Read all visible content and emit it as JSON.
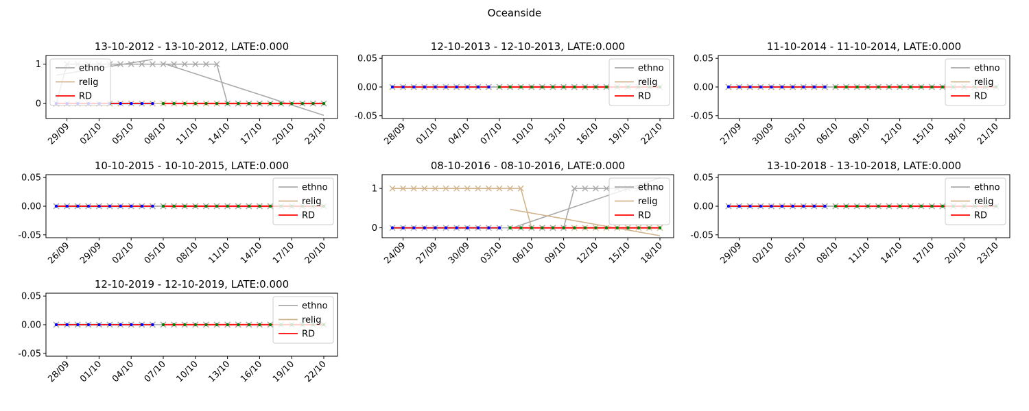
{
  "suptitle": "Oceanside",
  "legend_labels": [
    "ethno",
    "relig",
    "RD"
  ],
  "colors": {
    "ethno": "#a9a9a9",
    "relig": "#d2b48c",
    "RD": "#ff0000",
    "pre_marker": "#0000ff",
    "post_marker": "#008000",
    "pre_fit": "#add8e6",
    "post_fit": "#ffb6c1"
  },
  "chart_data": [
    {
      "type": "line",
      "title": "13-10-2012 - 13-10-2012, LATE:0.000",
      "legend_position": "upper-left",
      "ylim": [
        -0.38,
        1.22
      ],
      "yticks": [
        0,
        1
      ],
      "ytick_labels": [
        "0",
        "1"
      ],
      "xtick_labels": [
        "29/09",
        "02/10",
        "05/10",
        "08/10",
        "11/10",
        "14/10",
        "17/10",
        "20/10",
        "23/10"
      ],
      "cutoff_index": 10,
      "series": [
        {
          "name": "ethno",
          "values": [
            0,
            1,
            1,
            1,
            1,
            1,
            1,
            1,
            1,
            1,
            1,
            1,
            1,
            1,
            1,
            1,
            0,
            0,
            0,
            0,
            0,
            0,
            0,
            0,
            0,
            0
          ]
        },
        {
          "name": "relig",
          "values": [
            0,
            0,
            0,
            0,
            0,
            0,
            0,
            0,
            0,
            0,
            0,
            0,
            0,
            0,
            0,
            0,
            0,
            0,
            0,
            0,
            0,
            0,
            0,
            0,
            0,
            0
          ]
        },
        {
          "name": "RD",
          "values": [
            0,
            0,
            0,
            0,
            0,
            0,
            0,
            0,
            0,
            0,
            0,
            0,
            0,
            0,
            0,
            0,
            0,
            0,
            0,
            0,
            0,
            0,
            0,
            0,
            0,
            0
          ]
        }
      ],
      "ethno_fit": {
        "pre": [
          0.72,
          1.12
        ],
        "post": [
          1.02,
          -0.3
        ]
      },
      "relig_fit": {
        "pre": [
          0,
          0
        ],
        "post": [
          0,
          0
        ]
      }
    },
    {
      "type": "line",
      "title": "12-10-2013 - 12-10-2013, LATE:0.000",
      "legend_position": "upper-right",
      "ylim": [
        -0.055,
        0.055
      ],
      "yticks": [
        -0.05,
        0,
        0.05
      ],
      "ytick_labels": [
        "-0.05",
        "0.00",
        "0.05"
      ],
      "xtick_labels": [
        "28/09",
        "01/10",
        "04/10",
        "07/10",
        "10/10",
        "13/10",
        "16/10",
        "19/10",
        "22/10"
      ],
      "cutoff_index": 10,
      "series": [
        {
          "name": "ethno",
          "values": [
            0,
            0,
            0,
            0,
            0,
            0,
            0,
            0,
            0,
            0,
            0,
            0,
            0,
            0,
            0,
            0,
            0,
            0,
            0,
            0,
            0,
            0,
            0,
            0,
            0,
            0
          ]
        },
        {
          "name": "relig",
          "values": [
            0,
            0,
            0,
            0,
            0,
            0,
            0,
            0,
            0,
            0,
            0,
            0,
            0,
            0,
            0,
            0,
            0,
            0,
            0,
            0,
            0,
            0,
            0,
            0,
            0,
            0
          ]
        },
        {
          "name": "RD",
          "values": [
            0,
            0,
            0,
            0,
            0,
            0,
            0,
            0,
            0,
            0,
            0,
            0,
            0,
            0,
            0,
            0,
            0,
            0,
            0,
            0,
            0,
            0,
            0,
            0,
            0,
            0
          ]
        }
      ],
      "ethno_fit": {
        "pre": [
          0,
          0
        ],
        "post": [
          0,
          0
        ]
      },
      "relig_fit": {
        "pre": [
          0,
          0
        ],
        "post": [
          0,
          0
        ]
      }
    },
    {
      "type": "line",
      "title": "11-10-2014 - 11-10-2014, LATE:0.000",
      "legend_position": "upper-right",
      "ylim": [
        -0.055,
        0.055
      ],
      "yticks": [
        -0.05,
        0,
        0.05
      ],
      "ytick_labels": [
        "-0.05",
        "0.00",
        "0.05"
      ],
      "xtick_labels": [
        "27/09",
        "30/09",
        "03/10",
        "06/10",
        "09/10",
        "12/10",
        "15/10",
        "18/10",
        "21/10"
      ],
      "cutoff_index": 10,
      "series": [
        {
          "name": "ethno",
          "values": [
            0,
            0,
            0,
            0,
            0,
            0,
            0,
            0,
            0,
            0,
            0,
            0,
            0,
            0,
            0,
            0,
            0,
            0,
            0,
            0,
            0,
            0,
            0,
            0,
            0,
            0
          ]
        },
        {
          "name": "relig",
          "values": [
            0,
            0,
            0,
            0,
            0,
            0,
            0,
            0,
            0,
            0,
            0,
            0,
            0,
            0,
            0,
            0,
            0,
            0,
            0,
            0,
            0,
            0,
            0,
            0,
            0,
            0
          ]
        },
        {
          "name": "RD",
          "values": [
            0,
            0,
            0,
            0,
            0,
            0,
            0,
            0,
            0,
            0,
            0,
            0,
            0,
            0,
            0,
            0,
            0,
            0,
            0,
            0,
            0,
            0,
            0,
            0,
            0,
            0
          ]
        }
      ],
      "ethno_fit": {
        "pre": [
          0,
          0
        ],
        "post": [
          0,
          0
        ]
      },
      "relig_fit": {
        "pre": [
          0,
          0
        ],
        "post": [
          0,
          0
        ]
      }
    },
    {
      "type": "line",
      "title": "10-10-2015 - 10-10-2015, LATE:0.000",
      "legend_position": "upper-right",
      "ylim": [
        -0.055,
        0.055
      ],
      "yticks": [
        -0.05,
        0,
        0.05
      ],
      "ytick_labels": [
        "-0.05",
        "0.00",
        "0.05"
      ],
      "xtick_labels": [
        "26/09",
        "29/09",
        "02/10",
        "05/10",
        "08/10",
        "11/10",
        "14/10",
        "17/10",
        "20/10"
      ],
      "cutoff_index": 10,
      "series": [
        {
          "name": "ethno",
          "values": [
            0,
            0,
            0,
            0,
            0,
            0,
            0,
            0,
            0,
            0,
            0,
            0,
            0,
            0,
            0,
            0,
            0,
            0,
            0,
            0,
            0,
            0,
            0,
            0,
            0,
            0
          ]
        },
        {
          "name": "relig",
          "values": [
            0,
            0,
            0,
            0,
            0,
            0,
            0,
            0,
            0,
            0,
            0,
            0,
            0,
            0,
            0,
            0,
            0,
            0,
            0,
            0,
            0,
            0,
            0,
            0,
            0,
            0
          ]
        },
        {
          "name": "RD",
          "values": [
            0,
            0,
            0,
            0,
            0,
            0,
            0,
            0,
            0,
            0,
            0,
            0,
            0,
            0,
            0,
            0,
            0,
            0,
            0,
            0,
            0,
            0,
            0,
            0,
            0,
            0
          ]
        }
      ],
      "ethno_fit": {
        "pre": [
          0,
          0
        ],
        "post": [
          0,
          0
        ]
      },
      "relig_fit": {
        "pre": [
          0,
          0
        ],
        "post": [
          0,
          0
        ]
      }
    },
    {
      "type": "line",
      "title": "08-10-2016 - 08-10-2016, LATE:0.000",
      "legend_position": "upper-right",
      "ylim": [
        -0.25,
        1.35
      ],
      "yticks": [
        0,
        1
      ],
      "ytick_labels": [
        "0",
        "1"
      ],
      "xtick_labels": [
        "24/09",
        "27/09",
        "30/09",
        "03/10",
        "06/10",
        "09/10",
        "12/10",
        "15/10",
        "18/10"
      ],
      "cutoff_index": 11,
      "series": [
        {
          "name": "ethno",
          "values": [
            0,
            0,
            0,
            0,
            0,
            0,
            0,
            0,
            0,
            0,
            0,
            0,
            0,
            0,
            0,
            0,
            0,
            1,
            1,
            1,
            1,
            1,
            1,
            1,
            1,
            1
          ]
        },
        {
          "name": "relig",
          "values": [
            1,
            1,
            1,
            1,
            1,
            1,
            1,
            1,
            1,
            1,
            1,
            1,
            1,
            0,
            0,
            0,
            0,
            0,
            0,
            0,
            0,
            0,
            0,
            0,
            0,
            0
          ]
        },
        {
          "name": "RD",
          "values": [
            0,
            0,
            0,
            0,
            0,
            0,
            0,
            0,
            0,
            0,
            0,
            0,
            0,
            0,
            0,
            0,
            0,
            0,
            0,
            0,
            0,
            0,
            0,
            0,
            0,
            0
          ]
        }
      ],
      "ethno_fit": {
        "pre": [
          0,
          0
        ],
        "post": [
          -0.02,
          1.27
        ]
      },
      "relig_fit": {
        "pre": [
          1,
          1
        ],
        "post": [
          0.47,
          -0.2
        ]
      }
    },
    {
      "type": "line",
      "title": "13-10-2018 - 13-10-2018, LATE:0.000",
      "legend_position": "upper-right",
      "ylim": [
        -0.055,
        0.055
      ],
      "yticks": [
        -0.05,
        0,
        0.05
      ],
      "ytick_labels": [
        "-0.05",
        "0.00",
        "0.05"
      ],
      "xtick_labels": [
        "29/09",
        "02/10",
        "05/10",
        "08/10",
        "11/10",
        "14/10",
        "17/10",
        "20/10",
        "23/10"
      ],
      "cutoff_index": 10,
      "series": [
        {
          "name": "ethno",
          "values": [
            0,
            0,
            0,
            0,
            0,
            0,
            0,
            0,
            0,
            0,
            0,
            0,
            0,
            0,
            0,
            0,
            0,
            0,
            0,
            0,
            0,
            0,
            0,
            0,
            0,
            0
          ]
        },
        {
          "name": "relig",
          "values": [
            0,
            0,
            0,
            0,
            0,
            0,
            0,
            0,
            0,
            0,
            0,
            0,
            0,
            0,
            0,
            0,
            0,
            0,
            0,
            0,
            0,
            0,
            0,
            0,
            0,
            0
          ]
        },
        {
          "name": "RD",
          "values": [
            0,
            0,
            0,
            0,
            0,
            0,
            0,
            0,
            0,
            0,
            0,
            0,
            0,
            0,
            0,
            0,
            0,
            0,
            0,
            0,
            0,
            0,
            0,
            0,
            0,
            0
          ]
        }
      ],
      "ethno_fit": {
        "pre": [
          0,
          0
        ],
        "post": [
          0,
          0
        ]
      },
      "relig_fit": {
        "pre": [
          0,
          0
        ],
        "post": [
          0,
          0
        ]
      }
    },
    {
      "type": "line",
      "title": "12-10-2019 - 12-10-2019, LATE:0.000",
      "legend_position": "upper-right",
      "ylim": [
        -0.055,
        0.055
      ],
      "yticks": [
        -0.05,
        0,
        0.05
      ],
      "ytick_labels": [
        "-0.05",
        "0.00",
        "0.05"
      ],
      "xtick_labels": [
        "28/09",
        "01/10",
        "04/10",
        "07/10",
        "10/10",
        "13/10",
        "16/10",
        "19/10",
        "22/10"
      ],
      "cutoff_index": 10,
      "series": [
        {
          "name": "ethno",
          "values": [
            0,
            0,
            0,
            0,
            0,
            0,
            0,
            0,
            0,
            0,
            0,
            0,
            0,
            0,
            0,
            0,
            0,
            0,
            0,
            0,
            0,
            0,
            0,
            0,
            0,
            0
          ]
        },
        {
          "name": "relig",
          "values": [
            0,
            0,
            0,
            0,
            0,
            0,
            0,
            0,
            0,
            0,
            0,
            0,
            0,
            0,
            0,
            0,
            0,
            0,
            0,
            0,
            0,
            0,
            0,
            0,
            0,
            0
          ]
        },
        {
          "name": "RD",
          "values": [
            0,
            0,
            0,
            0,
            0,
            0,
            0,
            0,
            0,
            0,
            0,
            0,
            0,
            0,
            0,
            0,
            0,
            0,
            0,
            0,
            0,
            0,
            0,
            0,
            0,
            0
          ]
        }
      ],
      "ethno_fit": {
        "pre": [
          0,
          0
        ],
        "post": [
          0,
          0
        ]
      },
      "relig_fit": {
        "pre": [
          0,
          0
        ],
        "post": [
          0,
          0
        ]
      }
    }
  ]
}
